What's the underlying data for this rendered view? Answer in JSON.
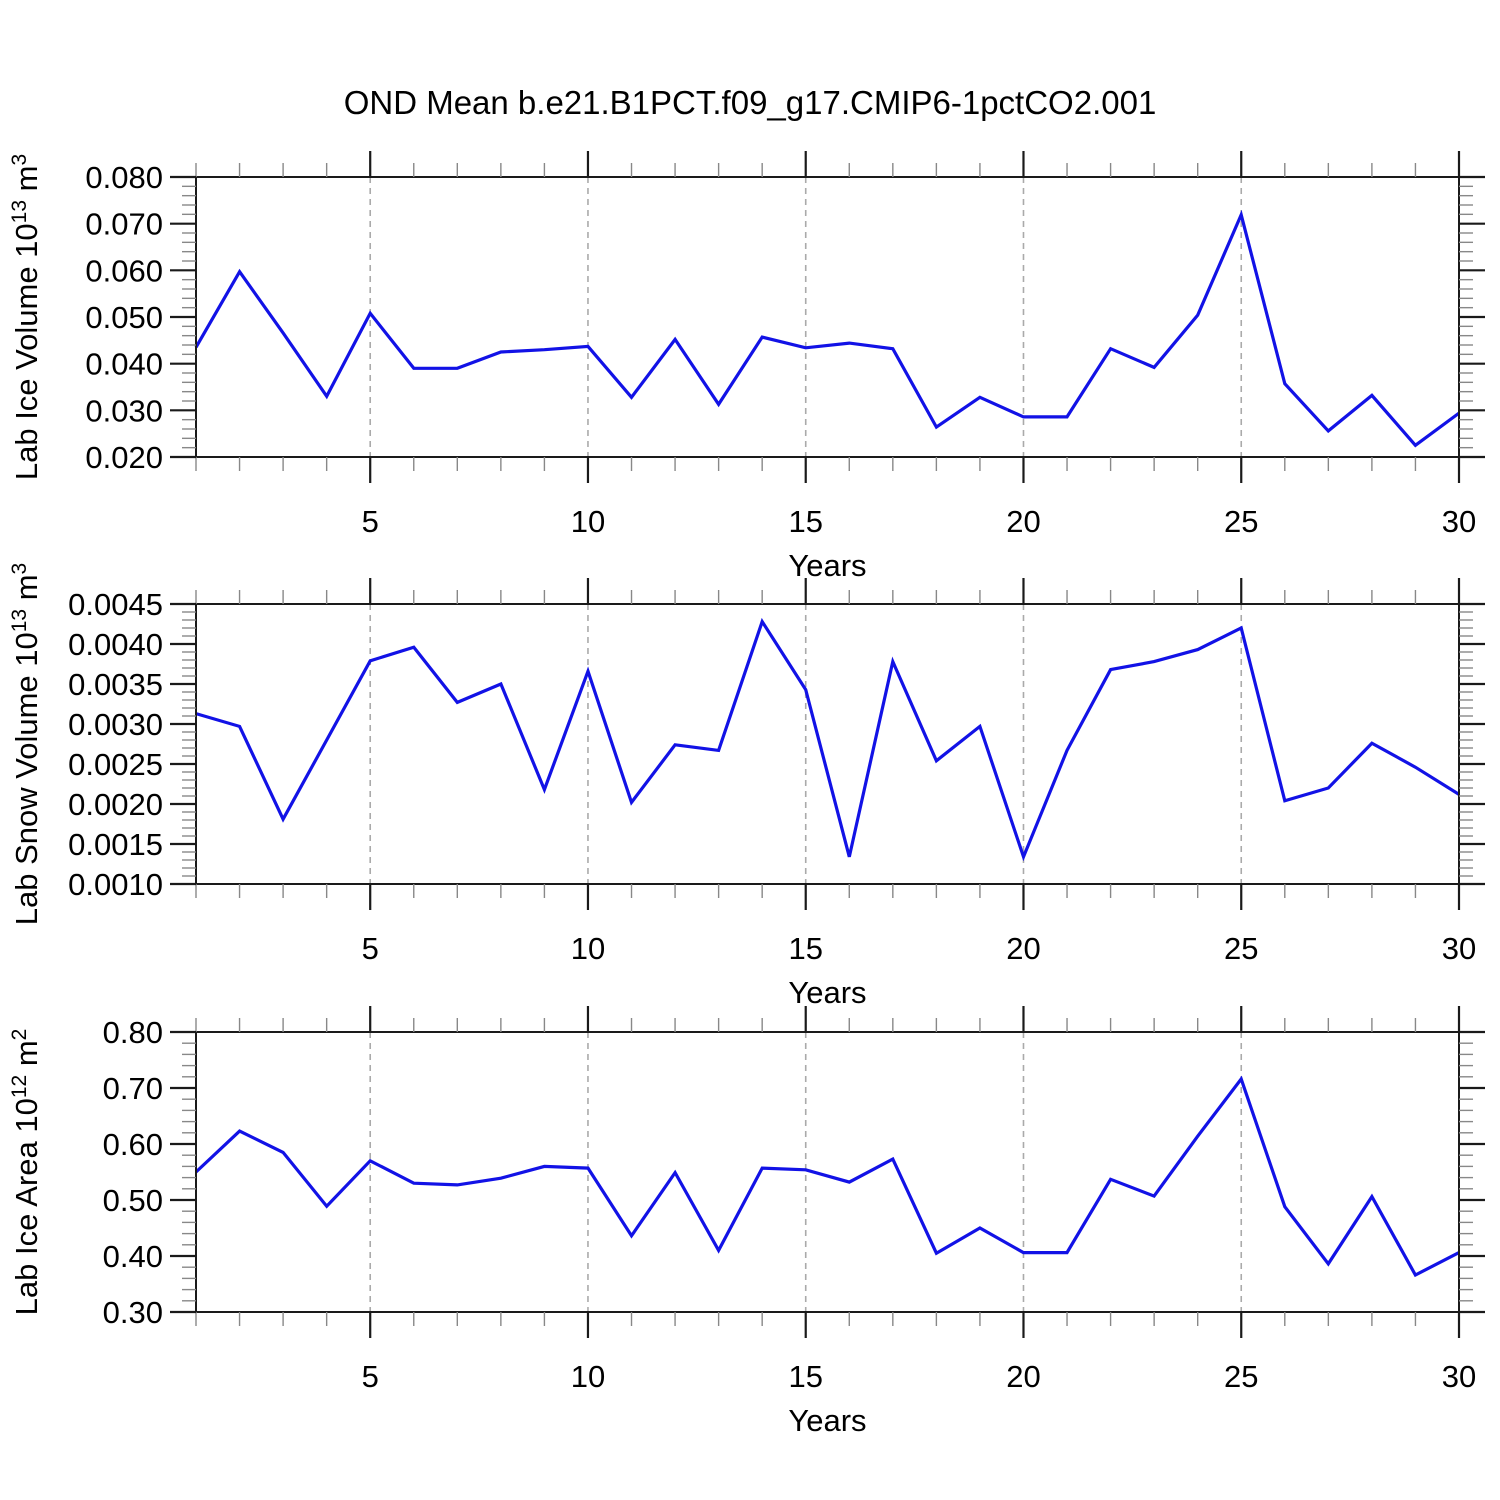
{
  "title": "OND Mean b.e21.B1PCT.f09_g17.CMIP6-1pctCO2.001",
  "xlabel": "Years",
  "colors": {
    "line": "#1212e6",
    "grid": "#aaaaaa",
    "axis": "#1a1a1a",
    "minor_tick": "#888888",
    "text": "#000000",
    "background": "#ffffff"
  },
  "x_axis": {
    "range": [
      1,
      30
    ],
    "major_ticks": [
      5,
      10,
      15,
      20,
      25,
      30
    ],
    "minor_step": 1,
    "gridlines": [
      5,
      10,
      15,
      20,
      25
    ]
  },
  "chart_data": [
    {
      "type": "line",
      "ylabel": "Lab Ice Volume 10^13 m^3",
      "ylabel_parts": [
        {
          "t": "Lab Ice Volume 10"
        },
        {
          "t": "13",
          "sup": true
        },
        {
          "t": " m"
        },
        {
          "t": "3",
          "sup": true
        }
      ],
      "xlabel": "Years",
      "ylim": [
        0.02,
        0.08
      ],
      "ytick_values": [
        0.02,
        0.03,
        0.04,
        0.05,
        0.06,
        0.07,
        0.08
      ],
      "ytick_labels": [
        "0.020",
        "0.030",
        "0.040",
        "0.050",
        "0.060",
        "0.070",
        "0.080"
      ],
      "yminor_step": 0.002,
      "x": [
        1,
        2,
        3,
        4,
        5,
        6,
        7,
        8,
        9,
        10,
        11,
        12,
        13,
        14,
        15,
        16,
        17,
        18,
        19,
        20,
        21,
        22,
        23,
        24,
        25,
        26,
        27,
        28,
        29,
        30
      ],
      "values": [
        0.0435,
        0.0597,
        0.0466,
        0.033,
        0.0508,
        0.039,
        0.039,
        0.0425,
        0.043,
        0.0437,
        0.0328,
        0.0452,
        0.0313,
        0.0457,
        0.0434,
        0.0444,
        0.0432,
        0.0264,
        0.0328,
        0.0286,
        0.0286,
        0.0432,
        0.0392,
        0.0504,
        0.0719,
        0.0357,
        0.0256,
        0.0332,
        0.0225,
        0.0294
      ]
    },
    {
      "type": "line",
      "ylabel": "Lab Snow Volume 10^13 m^3",
      "ylabel_parts": [
        {
          "t": "Lab Snow Volume 10"
        },
        {
          "t": "13",
          "sup": true
        },
        {
          "t": " m"
        },
        {
          "t": "3",
          "sup": true
        }
      ],
      "xlabel": "Years",
      "ylim": [
        0.001,
        0.0045
      ],
      "ytick_values": [
        0.001,
        0.0015,
        0.002,
        0.0025,
        0.003,
        0.0035,
        0.004,
        0.0045
      ],
      "ytick_labels": [
        "0.0010",
        "0.0015",
        "0.0020",
        "0.0025",
        "0.0030",
        "0.0035",
        "0.0040",
        "0.0045"
      ],
      "yminor_step": 0.0001,
      "x": [
        1,
        2,
        3,
        4,
        5,
        6,
        7,
        8,
        9,
        10,
        11,
        12,
        13,
        14,
        15,
        16,
        17,
        18,
        19,
        20,
        21,
        22,
        23,
        24,
        25,
        26,
        27,
        28,
        29,
        30
      ],
      "values": [
        0.00313,
        0.00297,
        0.00181,
        0.0028,
        0.00379,
        0.00396,
        0.00327,
        0.0035,
        0.00218,
        0.00366,
        0.00202,
        0.00274,
        0.00267,
        0.00428,
        0.00343,
        0.00134,
        0.00378,
        0.00254,
        0.00297,
        0.00134,
        0.00267,
        0.00368,
        0.00378,
        0.00393,
        0.0042,
        0.00204,
        0.0022,
        0.00276,
        0.00246,
        0.00212
      ]
    },
    {
      "type": "line",
      "ylabel": "Lab Ice Area 10^12 m^2",
      "ylabel_parts": [
        {
          "t": "Lab Ice Area 10"
        },
        {
          "t": "12",
          "sup": true
        },
        {
          "t": " m"
        },
        {
          "t": "2",
          "sup": true
        }
      ],
      "xlabel": "Years",
      "ylim": [
        0.3,
        0.8
      ],
      "ytick_values": [
        0.3,
        0.4,
        0.5,
        0.6,
        0.7,
        0.8
      ],
      "ytick_labels": [
        "0.30",
        "0.40",
        "0.50",
        "0.60",
        "0.70",
        "0.80"
      ],
      "yminor_step": 0.02,
      "x": [
        1,
        2,
        3,
        4,
        5,
        6,
        7,
        8,
        9,
        10,
        11,
        12,
        13,
        14,
        15,
        16,
        17,
        18,
        19,
        20,
        21,
        22,
        23,
        24,
        25,
        26,
        27,
        28,
        29,
        30
      ],
      "values": [
        0.55,
        0.623,
        0.585,
        0.489,
        0.57,
        0.53,
        0.527,
        0.539,
        0.56,
        0.557,
        0.436,
        0.549,
        0.41,
        0.557,
        0.554,
        0.532,
        0.573,
        0.405,
        0.45,
        0.406,
        0.406,
        0.537,
        0.507,
        0.614,
        0.716,
        0.488,
        0.386,
        0.506,
        0.366,
        0.406
      ]
    }
  ]
}
